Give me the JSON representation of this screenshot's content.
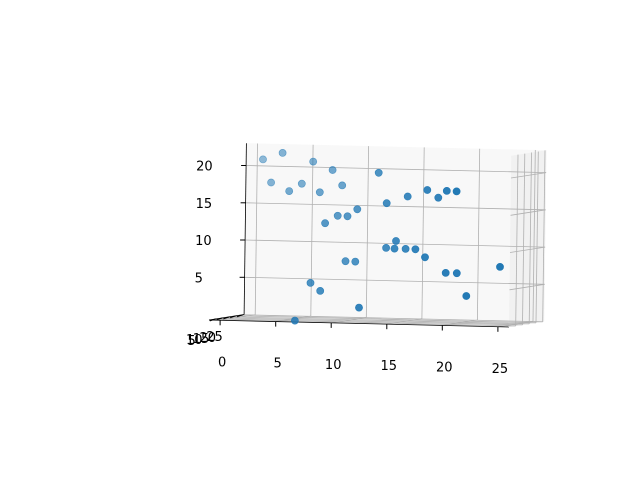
{
  "chart_data": {
    "type": "scatter",
    "projection": "3d",
    "title": "",
    "xlabel": "",
    "ylabel": "",
    "zlabel": "",
    "grid": true,
    "legend": "none",
    "xlim": [
      -1,
      26
    ],
    "ylim": [
      0,
      26
    ],
    "zlim": [
      0,
      23
    ],
    "x_ticks": [
      "0",
      "5",
      "10",
      "15",
      "20",
      "25"
    ],
    "y_ticks": [
      "5",
      "10",
      "15",
      "20",
      "25"
    ],
    "z_ticks": [
      "5",
      "10",
      "15",
      "20"
    ],
    "color": "#1f77b4",
    "points": [
      {
        "x": 1,
        "y": 22,
        "z": 21
      },
      {
        "x": 3,
        "y": 20,
        "z": 22
      },
      {
        "x": 6,
        "y": 18,
        "z": 21
      },
      {
        "x": 8,
        "y": 16,
        "z": 20
      },
      {
        "x": 13,
        "y": 9,
        "z": 20
      },
      {
        "x": 2,
        "y": 20,
        "z": 18
      },
      {
        "x": 5,
        "y": 18,
        "z": 18
      },
      {
        "x": 4,
        "y": 17,
        "z": 17
      },
      {
        "x": 7,
        "y": 15,
        "z": 17
      },
      {
        "x": 9,
        "y": 15,
        "z": 18
      },
      {
        "x": 18,
        "y": 4,
        "z": 18
      },
      {
        "x": 20,
        "y": 2,
        "z": 18
      },
      {
        "x": 21,
        "y": 1,
        "z": 18
      },
      {
        "x": 16,
        "y": 6,
        "z": 17
      },
      {
        "x": 19,
        "y": 4,
        "z": 17
      },
      {
        "x": 14,
        "y": 7,
        "z": 16
      },
      {
        "x": 11,
        "y": 10,
        "z": 15
      },
      {
        "x": 10,
        "y": 11,
        "z": 14
      },
      {
        "x": 9,
        "y": 12,
        "z": 14
      },
      {
        "x": 8,
        "y": 11,
        "z": 13
      },
      {
        "x": 15,
        "y": 6,
        "z": 11
      },
      {
        "x": 14,
        "y": 7,
        "z": 10
      },
      {
        "x": 15,
        "y": 5,
        "z": 10
      },
      {
        "x": 16,
        "y": 5,
        "z": 10
      },
      {
        "x": 17,
        "y": 4,
        "z": 10
      },
      {
        "x": 18,
        "y": 3,
        "z": 9
      },
      {
        "x": 10,
        "y": 10,
        "z": 8
      },
      {
        "x": 11,
        "y": 9,
        "z": 8
      },
      {
        "x": 20,
        "y": 2,
        "z": 7
      },
      {
        "x": 21,
        "y": 2,
        "z": 7
      },
      {
        "x": 25,
        "y": 1,
        "z": 8
      },
      {
        "x": 7,
        "y": 9,
        "z": 5
      },
      {
        "x": 8,
        "y": 8,
        "z": 4
      },
      {
        "x": 22,
        "y": 1,
        "z": 4
      },
      {
        "x": 12,
        "y": 4,
        "z": 2
      },
      {
        "x": 6,
        "y": 6,
        "z": 0
      }
    ]
  }
}
